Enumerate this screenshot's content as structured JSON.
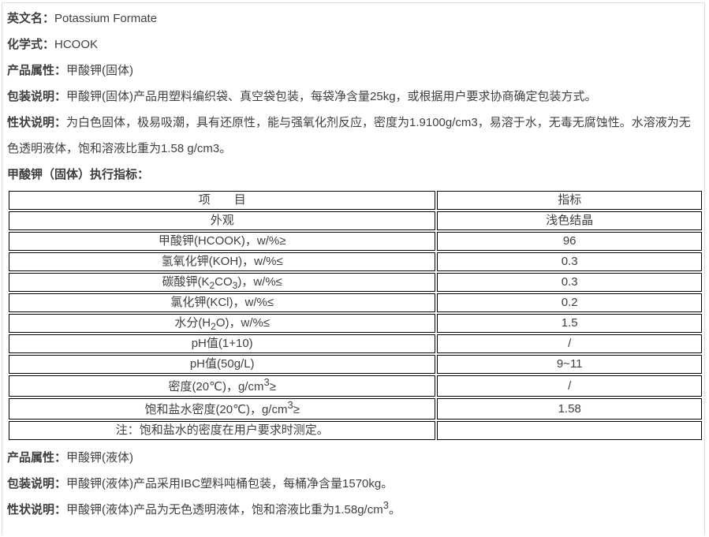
{
  "page": {
    "background_color": "#ffffff",
    "border_color": "#dcdcdc",
    "text_color": "#404040",
    "table_border_color": "#000000"
  },
  "info_top": [
    {
      "label": "英文名：",
      "segments": [
        {
          "t": "Potassium Formate"
        }
      ]
    },
    {
      "label": "化学式：",
      "segments": [
        {
          "t": "HCOOK"
        }
      ]
    },
    {
      "label": "产品属性：",
      "segments": [
        {
          "t": "甲酸钾(固体)"
        }
      ]
    },
    {
      "label": "包装说明：",
      "segments": [
        {
          "t": "甲酸钾(固体)产品用塑料编织袋、真空袋包装，每袋净含量25kg，或根据用户要求协商确定包装方式。"
        }
      ]
    },
    {
      "label": "性状说明：",
      "segments": [
        {
          "t": "为白色固体，极易吸潮，具有还原性，能与强氧化剂反应，密度为1.9100g/cm3，易溶于水，无毒无腐蚀性。水溶液为无色透明液体，饱和溶液比重为1.58 g/cm3。"
        }
      ]
    }
  ],
  "spec_table": {
    "title": "甲酸钾（固体）执行指标：",
    "col_item": "项　　目",
    "col_value": "指标",
    "rows": [
      {
        "item": [
          {
            "t": "外观"
          }
        ],
        "value": "浅色结晶"
      },
      {
        "item": [
          {
            "t": "甲酸钾(HCOOK)，w/%≥"
          }
        ],
        "value": "96"
      },
      {
        "item": [
          {
            "t": "氢氧化钾(KOH)，w/%≤"
          }
        ],
        "value": "0.3"
      },
      {
        "item": [
          {
            "t": "碳酸钾(K"
          },
          {
            "t": "2",
            "s": "sub"
          },
          {
            "t": "CO"
          },
          {
            "t": "3",
            "s": "sub"
          },
          {
            "t": ")，w/%≤"
          }
        ],
        "value": "0.3"
      },
      {
        "item": [
          {
            "t": "氯化钾(KCl)，w/%≤"
          }
        ],
        "value": "0.2"
      },
      {
        "item": [
          {
            "t": "水分(H"
          },
          {
            "t": "2",
            "s": "sub"
          },
          {
            "t": "O)，w/%≤"
          }
        ],
        "value": "1.5"
      },
      {
        "item": [
          {
            "t": "pH值(1+10)"
          }
        ],
        "value": "/"
      },
      {
        "item": [
          {
            "t": "pH值(50g/L)"
          }
        ],
        "value": "9~11"
      },
      {
        "item": [
          {
            "t": "密度(20℃)，g/cm"
          },
          {
            "t": "3",
            "s": "sup"
          },
          {
            "t": "≥"
          }
        ],
        "value": "/"
      },
      {
        "item": [
          {
            "t": "饱和盐水密度(20℃)，g/cm"
          },
          {
            "t": "3",
            "s": "sup"
          },
          {
            "t": "≥"
          }
        ],
        "value": "1.58"
      },
      {
        "item": [
          {
            "t": "注：饱和盐水的密度在用户要求时测定。"
          }
        ],
        "value": ""
      }
    ]
  },
  "info_bottom": [
    {
      "label": "产品属性：",
      "segments": [
        {
          "t": "甲酸钾(液体)"
        }
      ]
    },
    {
      "label": "包装说明：",
      "segments": [
        {
          "t": "甲酸钾(液体)产品采用IBC塑料吨桶包装，每桶净含量1570kg。"
        }
      ]
    },
    {
      "label": "性状说明：",
      "segments": [
        {
          "t": "甲酸钾(液体)产品为无色透明液体，饱和溶液比重为1.58g/cm"
        },
        {
          "t": "3",
          "s": "sup"
        },
        {
          "t": "。"
        }
      ]
    }
  ]
}
